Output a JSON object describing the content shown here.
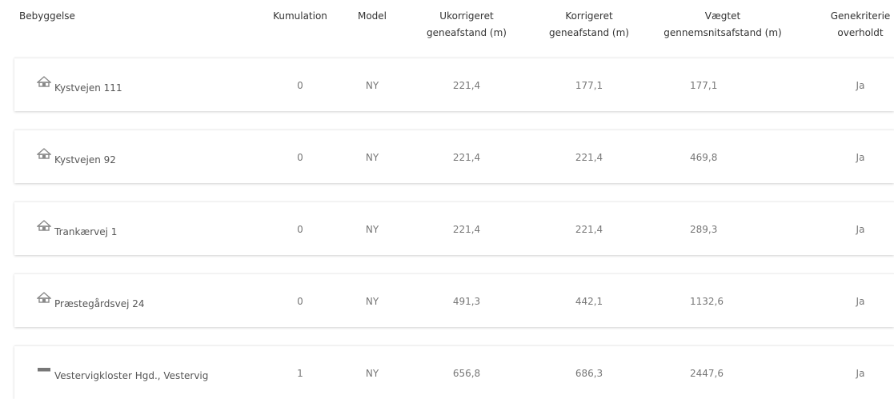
{
  "table": {
    "headers": [
      [
        "Bebyggelse"
      ],
      [
        "Kumulation"
      ],
      [
        "Model"
      ],
      [
        "Ukorrigeret",
        "geneafstand (m)"
      ],
      [
        "Korrigeret",
        "geneafstand (m)"
      ],
      [
        "Vægtet",
        "gennemsnitsafstand (m)"
      ],
      [
        "Genekriterie",
        "overholdt"
      ]
    ],
    "rows": [
      [
        "Kystvejen 111",
        "0",
        "NY",
        "221,4",
        "177,1",
        "177,1",
        "Ja"
      ],
      [
        "Kystvejen 92",
        "0",
        "NY",
        "221,4",
        "221,4",
        "469,8",
        "Ja"
      ],
      [
        "Trankærvej 1",
        "0",
        "NY",
        "221,4",
        "221,4",
        "289,3",
        "Ja"
      ],
      [
        "Præstegårdsvej 24",
        "0",
        "NY",
        "491,3",
        "442,1",
        "1132,6",
        "Ja"
      ],
      [
        "Vestervigkloster Hgd., Vestervig",
        "1",
        "NY",
        "656,8",
        "686,3",
        "2447,6",
        "Ja"
      ]
    ]
  }
}
